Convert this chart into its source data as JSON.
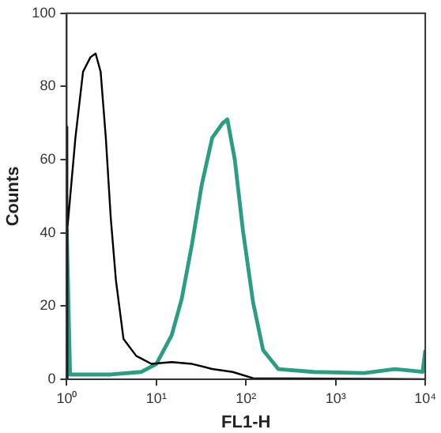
{
  "chart_data": {
    "type": "line",
    "xlabel": "FL1-H",
    "ylabel": "Counts",
    "log": "x",
    "xlim": [
      1,
      10000
    ],
    "ylim": [
      0,
      100
    ],
    "xticks": [
      {
        "value": 1,
        "label": "10⁰"
      },
      {
        "value": 10,
        "label": "10¹"
      },
      {
        "value": 100,
        "label": "10²"
      },
      {
        "value": 1000,
        "label": "10³"
      },
      {
        "value": 10000,
        "label": "10⁴"
      }
    ],
    "yticks": [
      0,
      20,
      40,
      60,
      80,
      100
    ],
    "grid": false,
    "legend": false,
    "marker": "none",
    "line_style": "solid",
    "series": [
      {
        "color": "#000000",
        "x": [
          1,
          1,
          1.03,
          1.25,
          1.52,
          1.84,
          2.1,
          2.39,
          2.73,
          3.1,
          3.54,
          4.3,
          5.96,
          8.8,
          14.8,
          25,
          42,
          71,
          120,
          10000
        ],
        "values": [
          0,
          69,
          41,
          66,
          84,
          88,
          89,
          84,
          66,
          44,
          27,
          11,
          6.4,
          4.2,
          4.7,
          4.2,
          2.8,
          2,
          0.3,
          0
        ]
      },
      {
        "color": "#2a9d83",
        "x": [
          1,
          1,
          1.09,
          3.1,
          6.8,
          10,
          14.8,
          19.2,
          25,
          32,
          42,
          55,
          62,
          75,
          92,
          120,
          155,
          229,
          571,
          2100,
          4570,
          9330,
          10000
        ],
        "values": [
          0,
          41,
          1.3,
          1.3,
          2,
          4.2,
          12,
          22,
          37,
          53,
          66,
          70,
          71,
          60,
          41,
          21,
          8,
          2.8,
          2,
          1.7,
          2.8,
          2,
          8
        ]
      }
    ]
  }
}
